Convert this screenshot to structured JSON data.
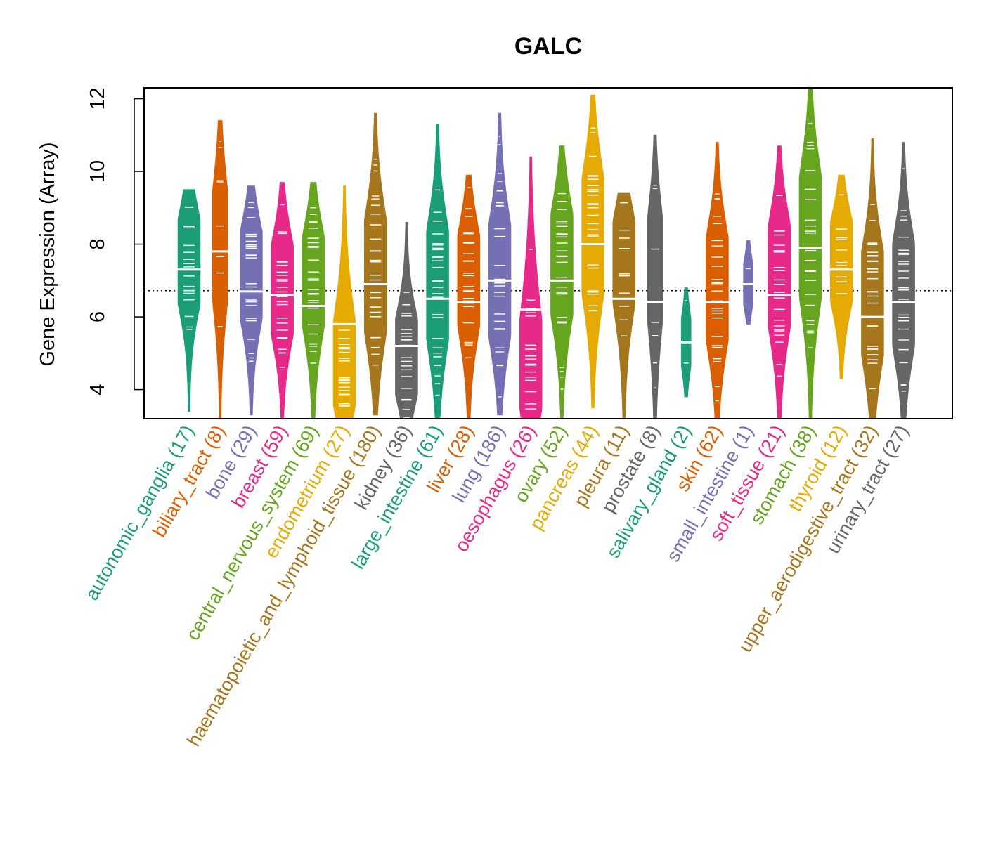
{
  "chart_data": {
    "type": "violin",
    "title": "GALC",
    "xlabel": "",
    "ylabel": "Gene Expression (Array)",
    "ylim": [
      3.2,
      12.3
    ],
    "yticks": [
      4,
      6,
      8,
      10,
      12
    ],
    "reference_line": 6.72,
    "categories": [
      {
        "name": "autonomic_ganglia",
        "n": 17,
        "label": "autonomic_ganglia (17)",
        "color": "#1b9e77",
        "min": 3.4,
        "max": 9.5,
        "median": 7.3,
        "mode": 7.6
      },
      {
        "name": "biliary_tract",
        "n": 8,
        "label": "biliary_tract (8)",
        "color": "#d95f02",
        "min": 3.2,
        "max": 11.4,
        "median": 7.8,
        "mode": 8.0
      },
      {
        "name": "bone",
        "n": 29,
        "label": "bone (29)",
        "color": "#7570b3",
        "min": 3.3,
        "max": 9.6,
        "median": 6.7,
        "mode": 7.3
      },
      {
        "name": "breast",
        "n": 59,
        "label": "breast (59)",
        "color": "#e7298a",
        "min": 3.2,
        "max": 9.7,
        "median": 6.6,
        "mode": 6.8
      },
      {
        "name": "central_nervous_system",
        "n": 69,
        "label": "central_nervous_system (69)",
        "color": "#66a61e",
        "min": 3.2,
        "max": 9.7,
        "median": 6.3,
        "mode": 7.2
      },
      {
        "name": "endometrium",
        "n": 27,
        "label": "endometrium (27)",
        "color": "#e6ab02",
        "min": 3.2,
        "max": 9.6,
        "median": 5.8,
        "mode": 4.4
      },
      {
        "name": "haematopoietic_and_lymphoid_tissue",
        "n": 180,
        "label": "haematopoietic_and_lymphoid_tissue (180)",
        "color": "#a6761d",
        "min": 3.3,
        "max": 11.6,
        "median": 6.9,
        "mode": 7.2
      },
      {
        "name": "kidney",
        "n": 36,
        "label": "kidney (36)",
        "color": "#666666",
        "min": 3.2,
        "max": 8.6,
        "median": 5.2,
        "mode": 4.8
      },
      {
        "name": "large_intestine",
        "n": 61,
        "label": "large_intestine (61)",
        "color": "#1b9e77",
        "min": 3.2,
        "max": 11.3,
        "median": 6.5,
        "mode": 7.0
      },
      {
        "name": "liver",
        "n": 28,
        "label": "liver (28)",
        "color": "#d95f02",
        "min": 3.2,
        "max": 9.9,
        "median": 6.4,
        "mode": 7.2
      },
      {
        "name": "lung",
        "n": 186,
        "label": "lung (186)",
        "color": "#7570b3",
        "min": 3.3,
        "max": 11.6,
        "median": 7.0,
        "mode": 7.0
      },
      {
        "name": "oesophagus",
        "n": 26,
        "label": "oesophagus (26)",
        "color": "#e7298a",
        "min": 3.2,
        "max": 10.4,
        "median": 6.2,
        "mode": 4.3
      },
      {
        "name": "ovary",
        "n": 52,
        "label": "ovary (52)",
        "color": "#66a61e",
        "min": 3.2,
        "max": 10.7,
        "median": 7.0,
        "mode": 7.6
      },
      {
        "name": "pancreas",
        "n": 44,
        "label": "pancreas (44)",
        "color": "#e6ab02",
        "min": 3.5,
        "max": 12.1,
        "median": 8.0,
        "mode": 8.3
      },
      {
        "name": "pleura",
        "n": 11,
        "label": "pleura (11)",
        "color": "#a6761d",
        "min": 3.2,
        "max": 9.4,
        "median": 6.5,
        "mode": 7.8
      },
      {
        "name": "prostate",
        "n": 8,
        "label": "prostate (8)",
        "color": "#666666",
        "min": 3.2,
        "max": 11.0,
        "median": 6.4,
        "mode": 7.6
      },
      {
        "name": "salivary_gland",
        "n": 2,
        "label": "salivary_gland (2)",
        "color": "#1b9e77",
        "min": 3.8,
        "max": 6.8,
        "median": 5.3,
        "mode": 5.3
      },
      {
        "name": "skin",
        "n": 62,
        "label": "skin (62)",
        "color": "#d95f02",
        "min": 3.2,
        "max": 10.8,
        "median": 6.4,
        "mode": 6.9
      },
      {
        "name": "small_intestine",
        "n": 1,
        "label": "small_intestine (1)",
        "color": "#7570b3",
        "min": 5.8,
        "max": 8.1,
        "median": 6.9,
        "mode": 6.9
      },
      {
        "name": "soft_tissue",
        "n": 21,
        "label": "soft_tissue (21)",
        "color": "#e7298a",
        "min": 3.2,
        "max": 10.7,
        "median": 6.6,
        "mode": 7.3
      },
      {
        "name": "stomach",
        "n": 38,
        "label": "stomach (38)",
        "color": "#66a61e",
        "min": 3.2,
        "max": 12.3,
        "median": 7.9,
        "mode": 8.3
      },
      {
        "name": "thyroid",
        "n": 12,
        "label": "thyroid (12)",
        "color": "#e6ab02",
        "min": 4.3,
        "max": 9.9,
        "median": 7.3,
        "mode": 7.6
      },
      {
        "name": "upper_aerodigestive_tract",
        "n": 32,
        "label": "upper_aerodigestive_tract (32)",
        "color": "#a6761d",
        "min": 3.2,
        "max": 10.9,
        "median": 6.0,
        "mode": 6.5
      },
      {
        "name": "urinary_tract",
        "n": 27,
        "label": "urinary_tract (27)",
        "color": "#666666",
        "min": 3.2,
        "max": 10.8,
        "median": 6.4,
        "mode": 6.7
      }
    ]
  }
}
